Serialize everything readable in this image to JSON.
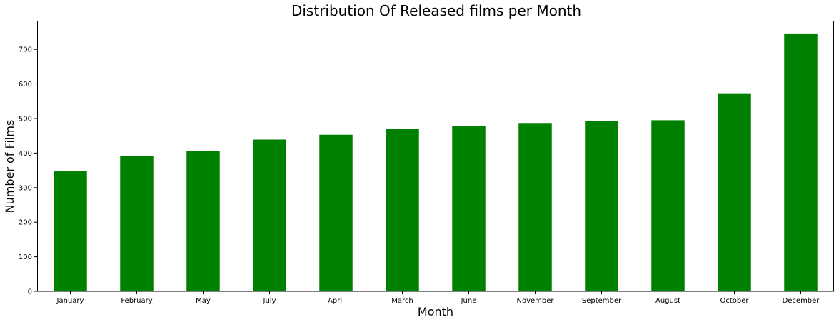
{
  "chart_data": {
    "type": "bar",
    "title": "Distribution Of Released films per Month",
    "xlabel": "Month",
    "ylabel": "Number of Films",
    "categories": [
      "January",
      "February",
      "May",
      "July",
      "April",
      "March",
      "June",
      "November",
      "September",
      "August",
      "October",
      "December"
    ],
    "values": [
      347,
      392,
      406,
      439,
      453,
      470,
      478,
      487,
      492,
      495,
      573,
      746
    ],
    "ylim": [
      0,
      783
    ],
    "yticks": [
      0,
      100,
      200,
      300,
      400,
      500,
      600,
      700
    ],
    "bar_color": "#008000",
    "grid": false,
    "legend": "none"
  }
}
